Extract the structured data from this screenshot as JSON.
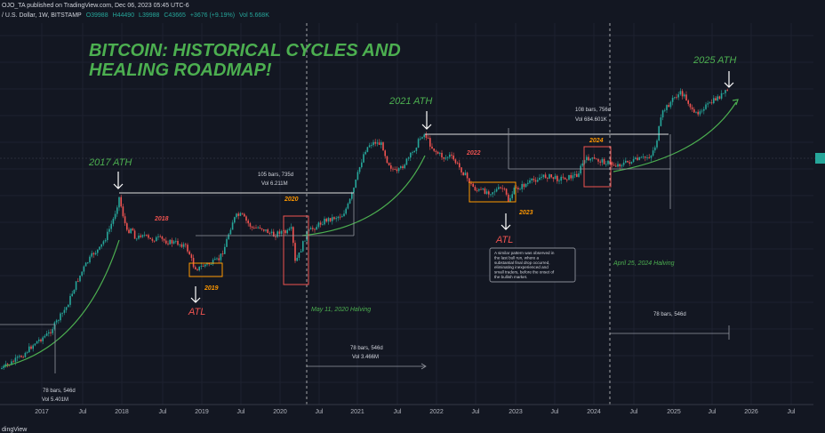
{
  "header": {
    "published": "OJO_TA published on TradingView.com, Dec 06, 2023 05:45 UTC-6",
    "symbol": "/ U.S. Dollar, 1W, BITSTAMP",
    "open": "O39988",
    "high": "H44490",
    "low": "L39988",
    "close": "C43665",
    "change": "+3676 (+9.19%)",
    "volume": "Vol 5.668K"
  },
  "footer": {
    "brand": "dingView"
  },
  "colors": {
    "background": "#131722",
    "title_green": "#4caf50",
    "up_candle": "#26a69a",
    "down_candle": "#ef5350",
    "year_label_red": "#ef5350",
    "year_label_orange": "#ff9800",
    "curve_green": "#4caf50",
    "dashed_line": "#ffffff"
  },
  "chart_data": {
    "type": "candlestick",
    "title": "BITCOIN: HISTORICAL CYCLES AND HEALING ROADMAP!",
    "x_ticks": [
      "2017",
      "Jul",
      "2018",
      "Jul",
      "2019",
      "Jul",
      "2020",
      "Jul",
      "2021",
      "Jul",
      "2022",
      "Jul",
      "2023",
      "Jul",
      "2024",
      "Jul",
      "2025",
      "Jul",
      "2026",
      "Jul"
    ],
    "x_range": [
      2016.55,
      2026.85
    ],
    "annotations": {
      "ath_2017": "2017 ATH",
      "ath_2021": "2021 ATH",
      "ath_2025": "2025 ATH",
      "atl_1": "ATL",
      "atl_2": "ATL",
      "yr_2018": "2018",
      "yr_2019": "2019",
      "yr_2020": "2020",
      "yr_2022": "2022",
      "yr_2023": "2023",
      "yr_2024": "2024",
      "halving_2020": "May 11, 2020 Halving",
      "halving_2024": "April 25, 2024 Halving",
      "measure_a_bars": "105 bars, 735d",
      "measure_a_vol": "Vol 6.211M",
      "measure_b_bars": "78 bars, 546d",
      "measure_b_vol": "Vol 3.466M",
      "measure_c_bars": "108 bars, 756d",
      "measure_c_vol": "Vol 684.601K",
      "measure_d_bars": "78 bars, 546d",
      "measure_e_bars": "78 bars, 546d",
      "measure_e_vol": "Vol 5.401M",
      "note": "A similar pattern was observed in the last bull run, where a substantial final drop occurred, eliminating inexperienced and small traders, before the onset of the bullish market."
    }
  }
}
